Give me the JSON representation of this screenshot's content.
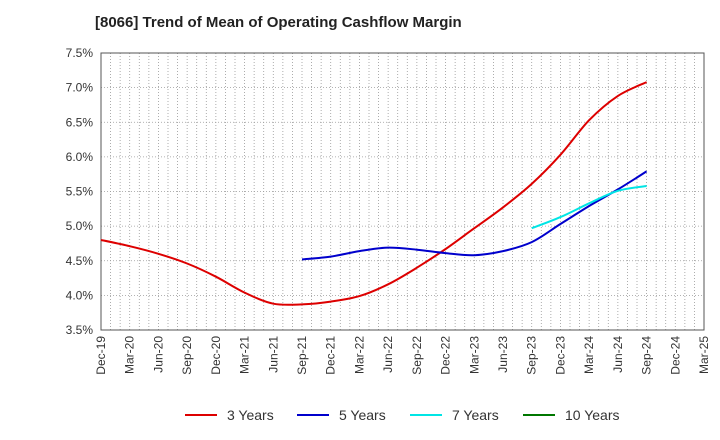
{
  "chart_data": {
    "type": "line",
    "title": "[8066]  Trend of Mean of Operating Cashflow Margin",
    "xlabel": "",
    "ylabel": "",
    "categories": [
      "Dec-19",
      "Mar-20",
      "Jun-20",
      "Sep-20",
      "Dec-20",
      "Mar-21",
      "Jun-21",
      "Sep-21",
      "Dec-21",
      "Mar-22",
      "Jun-22",
      "Sep-22",
      "Dec-22",
      "Mar-23",
      "Jun-23",
      "Sep-23",
      "Dec-23",
      "Mar-24",
      "Jun-24",
      "Sep-24",
      "Dec-24",
      "Mar-25"
    ],
    "y_ticks": [
      "3.5%",
      "4.0%",
      "4.5%",
      "5.0%",
      "5.5%",
      "6.0%",
      "6.5%",
      "7.0%",
      "7.5%"
    ],
    "ylim": [
      3.5,
      7.5
    ],
    "grid": true,
    "legend_position": "bottom",
    "series": [
      {
        "name": "3 Years",
        "color": "#dd0000",
        "values": [
          4.8,
          4.71,
          4.6,
          4.46,
          4.27,
          4.04,
          3.88,
          3.87,
          3.91,
          3.99,
          4.16,
          4.4,
          4.67,
          4.97,
          5.27,
          5.61,
          6.03,
          6.53,
          6.88,
          7.08,
          null,
          null
        ]
      },
      {
        "name": "5 Years",
        "color": "#0000cc",
        "values": [
          null,
          null,
          null,
          null,
          null,
          null,
          null,
          4.52,
          4.56,
          4.64,
          4.69,
          4.66,
          4.61,
          4.58,
          4.64,
          4.77,
          5.03,
          5.29,
          5.53,
          5.79,
          null,
          null
        ]
      },
      {
        "name": "7 Years",
        "color": "#00e5e5",
        "values": [
          null,
          null,
          null,
          null,
          null,
          null,
          null,
          null,
          null,
          null,
          null,
          null,
          null,
          null,
          null,
          4.97,
          5.13,
          5.33,
          5.51,
          5.58,
          null,
          null
        ]
      },
      {
        "name": "10 Years",
        "color": "#007700",
        "values": [
          null,
          null,
          null,
          null,
          null,
          null,
          null,
          null,
          null,
          null,
          null,
          null,
          null,
          null,
          null,
          null,
          null,
          null,
          null,
          null,
          null,
          null
        ]
      }
    ]
  }
}
